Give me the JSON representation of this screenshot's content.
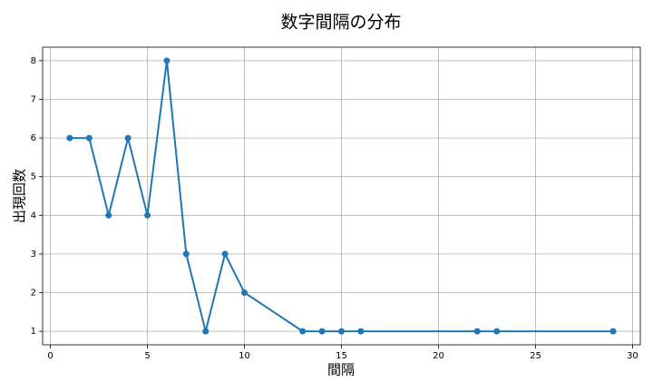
{
  "chart_data": {
    "type": "line",
    "title": "数字間隔の分布",
    "x_label": "間隔",
    "y_label": "出現回数",
    "x": [
      1,
      2,
      3,
      4,
      5,
      6,
      7,
      8,
      9,
      10,
      13,
      14,
      15,
      16,
      22,
      23,
      29
    ],
    "values": [
      6,
      6,
      4,
      6,
      4,
      8,
      3,
      1,
      3,
      2,
      1,
      1,
      1,
      1,
      1,
      1,
      1
    ],
    "color": "#1f77b4",
    "xlim": [
      -0.4,
      30.4
    ],
    "xticks": [
      0,
      5,
      10,
      15,
      20,
      25,
      30
    ],
    "ylim": [
      0.65,
      8.35
    ],
    "yticks": [
      1,
      2,
      3,
      4,
      5,
      6,
      7,
      8
    ],
    "grid": true
  }
}
